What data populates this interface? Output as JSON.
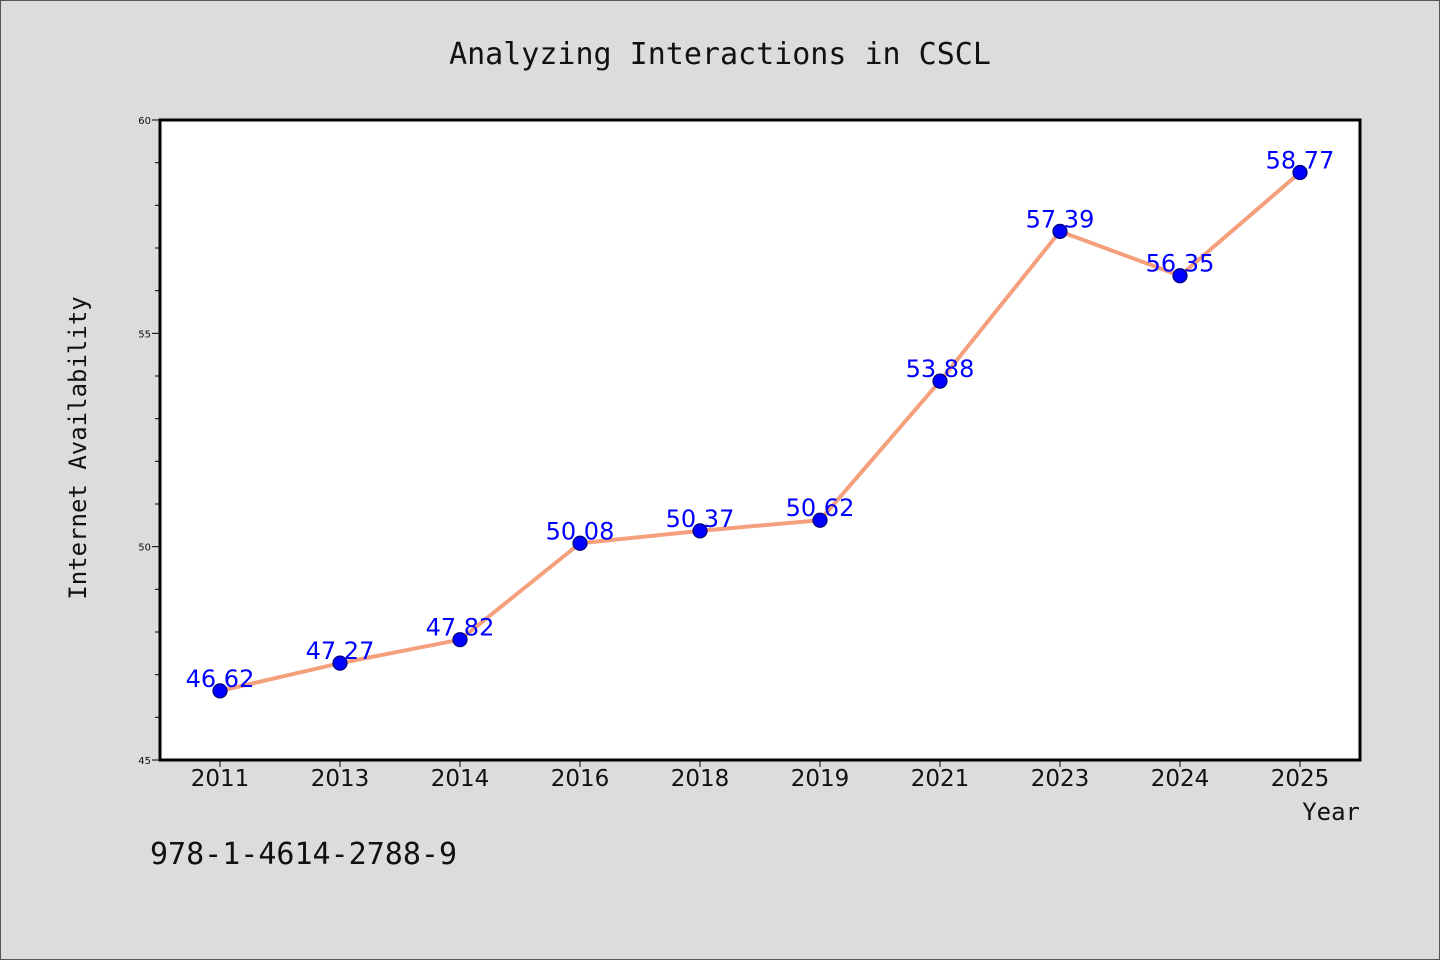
{
  "chart_data": {
    "type": "line",
    "title": "Analyzing Interactions in CSCL",
    "xlabel": "Year",
    "ylabel": "Internet Availability",
    "categories": [
      "2011",
      "2013",
      "2014",
      "2016",
      "2018",
      "2019",
      "2021",
      "2023",
      "2024",
      "2025"
    ],
    "values": [
      46.62,
      47.27,
      47.82,
      50.08,
      50.37,
      50.62,
      53.88,
      57.39,
      56.35,
      58.77
    ],
    "ylim": [
      45,
      60
    ],
    "yticks": [
      45,
      50,
      55,
      60
    ],
    "y_minor_step": 1,
    "grid": false,
    "legend": "none",
    "data_labels": true,
    "colors": {
      "background": "#dcdcdc",
      "plot_background": "#ffffff",
      "line": "#f5a07c",
      "marker_fill": "#0000ff",
      "marker_edge": "#00007a",
      "label": "#0000ff"
    }
  },
  "footer": {
    "isbn": "978-1-4614-2788-9"
  }
}
